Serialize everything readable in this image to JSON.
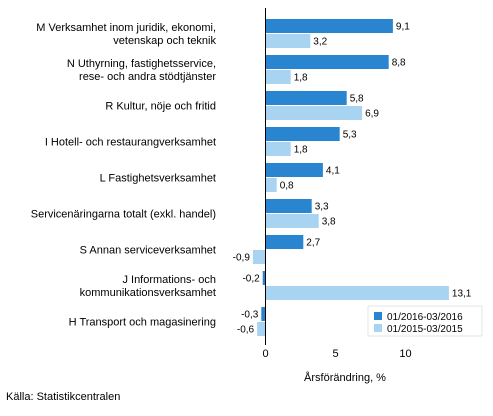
{
  "chart_data": {
    "type": "bar",
    "orientation": "horizontal",
    "categories": [
      [
        "M Verksamhet inom juridik, ekonomi,",
        "vetenskap och teknik"
      ],
      [
        "N Uthyrning, fastighetsservice,",
        "rese- och andra stödtjänster"
      ],
      [
        "R Kultur, nöje och fritid"
      ],
      [
        "I Hotell- och restaurangverksamhet"
      ],
      [
        "L Fastighetsverksamhet"
      ],
      [
        "Servicenäringarna totalt (exkl. handel)"
      ],
      [
        "S Annan serviceverksamhet"
      ],
      [
        "J Informations- och",
        "kommunikationsverksamhet"
      ],
      [
        "H Transport och magasinering"
      ]
    ],
    "series": [
      {
        "name": "01/2016-03/2016",
        "color": "#2a85d0",
        "values": [
          9.1,
          8.8,
          5.8,
          5.3,
          4.1,
          3.3,
          2.7,
          -0.2,
          -0.3
        ],
        "labels": [
          "9,1",
          "8,8",
          "5,8",
          "5,3",
          "4,1",
          "3,3",
          "2,7",
          "-0,2",
          "-0,3"
        ]
      },
      {
        "name": "01/2015-03/2015",
        "color": "#a8d4f2",
        "values": [
          3.2,
          1.8,
          6.9,
          1.8,
          0.8,
          3.8,
          -0.9,
          13.1,
          -0.6
        ],
        "labels": [
          "3,2",
          "1,8",
          "6,9",
          "1,8",
          "0,8",
          "3,8",
          "-0,9",
          "13,1",
          "-0,6"
        ]
      }
    ],
    "xlim": [
      -3,
      15
    ],
    "xticks": [
      0,
      5,
      10
    ],
    "xtick_labels": [
      "0",
      "5",
      "10"
    ],
    "xlabel": "Årsförändring, %",
    "grid": false,
    "legend_position": "bottom-right"
  },
  "source": "Källa: Statistikcentralen"
}
